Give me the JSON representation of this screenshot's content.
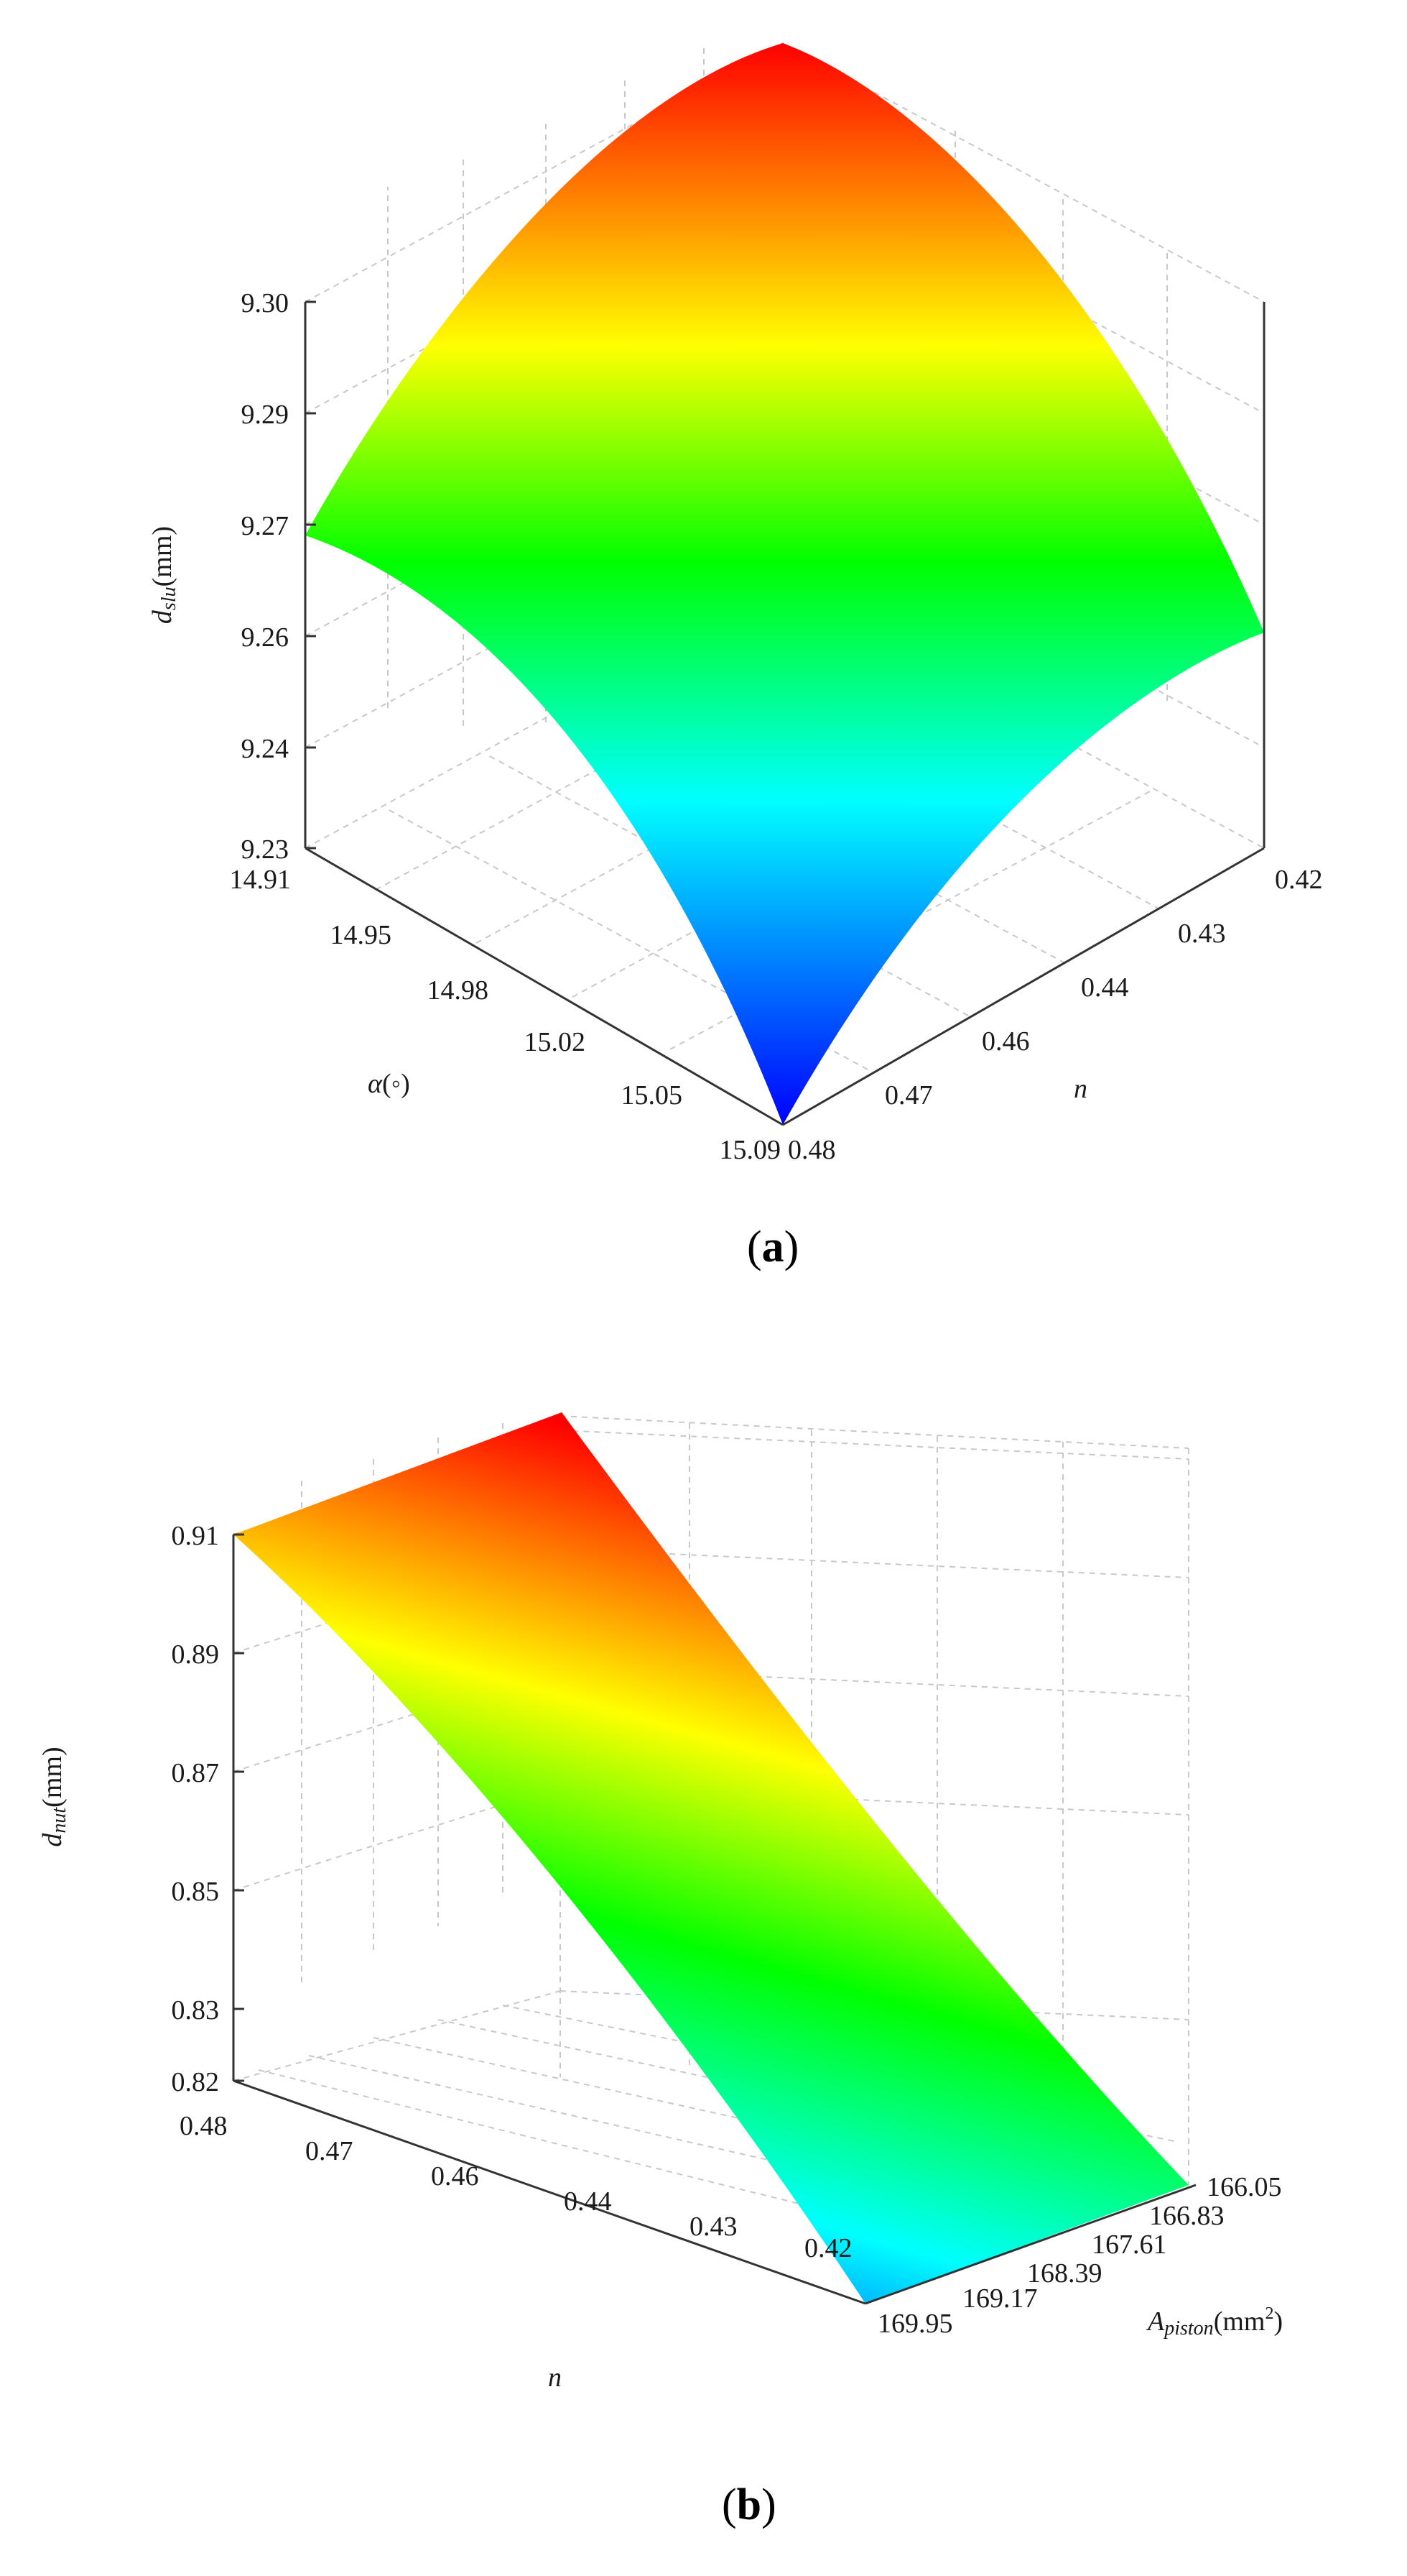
{
  "chart_data": [
    {
      "type": "surface",
      "panel_label": "a",
      "zlabel": {
        "var": "d",
        "sub": "slu",
        "unit": "(mm)"
      },
      "xlabel": {
        "var": "α",
        "unit": "(◦)"
      },
      "ylabel": {
        "var": "n"
      },
      "z_ticks": [
        "9.30",
        "9.29",
        "9.27",
        "9.26",
        "9.24",
        "9.23"
      ],
      "x_ticks": [
        "14.91",
        "14.95",
        "14.98",
        "15.02",
        "15.05",
        "15.09"
      ],
      "y_ticks": [
        "0.42",
        "0.43",
        "0.44",
        "0.46",
        "0.47",
        "0.48"
      ],
      "zlim": [
        9.23,
        9.3
      ],
      "xlim": [
        14.91,
        15.09
      ],
      "ylim": [
        0.42,
        0.48
      ],
      "colormap": [
        "#0000ff",
        "#00ffff",
        "#00ff00",
        "#ffff00",
        "#ff0000"
      ]
    },
    {
      "type": "surface",
      "panel_label": "b",
      "zlabel": {
        "var": "d",
        "sub": "nut",
        "unit": "(mm)"
      },
      "xlabel": {
        "var": "n"
      },
      "ylabel": {
        "var": "A",
        "sub": "piston",
        "unit": "(mm",
        "sup": "2",
        "close": ")"
      },
      "z_ticks": [
        "0.91",
        "0.89",
        "0.87",
        "0.85",
        "0.83",
        "0.82"
      ],
      "x_ticks": [
        "0.48",
        "0.47",
        "0.46",
        "0.44",
        "0.43",
        "0.42"
      ],
      "y_ticks": [
        "166.05",
        "166.83",
        "167.61",
        "168.39",
        "169.17",
        "169.95"
      ],
      "zlim": [
        0.82,
        0.91
      ],
      "xlim": [
        0.42,
        0.48
      ],
      "ylim": [
        166.05,
        169.95
      ],
      "colormap": [
        "#0000ff",
        "#00ffff",
        "#00ff00",
        "#ffff00",
        "#ff0000"
      ]
    }
  ]
}
